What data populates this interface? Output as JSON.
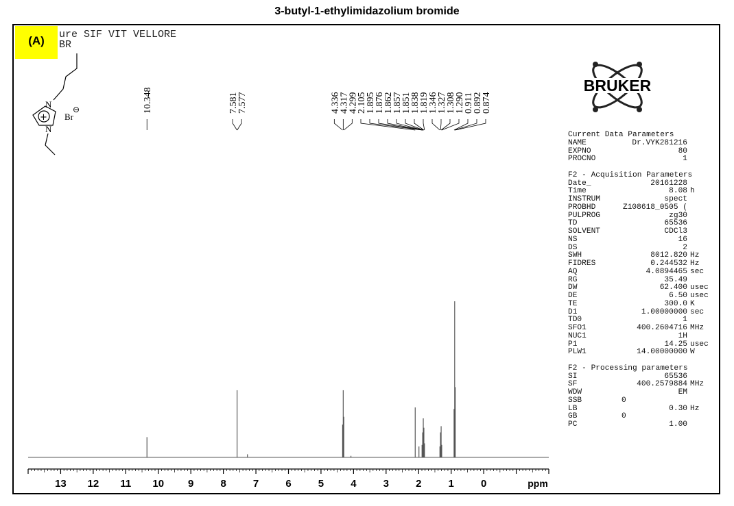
{
  "title": "3-butyl-1-ethylimidazolium bromide",
  "panel_label": "(A)",
  "header_lines": [
    "ure SIF VIT VELLORE",
    "BR"
  ],
  "structure": {
    "n1": "N",
    "n2": "N",
    "plus": "⊕",
    "anion": "Br",
    "anion_charge": "⊖"
  },
  "logo_text": "BRUKER",
  "params": {
    "current_title": "Current Data Parameters",
    "current": [
      {
        "k": "NAME",
        "v": "Dr.VYK281216",
        "u": ""
      },
      {
        "k": "EXPNO",
        "v": "80",
        "u": ""
      },
      {
        "k": "PROCNO",
        "v": "1",
        "u": ""
      }
    ],
    "acq_title": "F2 - Acquisition Parameters",
    "acq": [
      {
        "k": "Date_",
        "v": "20161228",
        "u": ""
      },
      {
        "k": "Time",
        "v": "8.08",
        "u": "h"
      },
      {
        "k": "INSTRUM",
        "v": "spect",
        "u": ""
      },
      {
        "k": "PROBHD",
        "v": "Z108618_0505 (",
        "u": ""
      },
      {
        "k": "PULPROG",
        "v": "zg30",
        "u": ""
      },
      {
        "k": "TD",
        "v": "65536",
        "u": ""
      },
      {
        "k": "SOLVENT",
        "v": "CDCl3",
        "u": ""
      },
      {
        "k": "NS",
        "v": "16",
        "u": ""
      },
      {
        "k": "DS",
        "v": "2",
        "u": ""
      },
      {
        "k": "SWH",
        "v": "8012.820",
        "u": "Hz"
      },
      {
        "k": "FIDRES",
        "v": "0.244532",
        "u": "Hz"
      },
      {
        "k": "AQ",
        "v": "4.0894465",
        "u": "sec"
      },
      {
        "k": "RG",
        "v": "35.49",
        "u": ""
      },
      {
        "k": "DW",
        "v": "62.400",
        "u": "usec"
      },
      {
        "k": "DE",
        "v": "6.50",
        "u": "usec"
      },
      {
        "k": "TE",
        "v": "300.0",
        "u": "K"
      },
      {
        "k": "D1",
        "v": "1.00000000",
        "u": "sec"
      },
      {
        "k": "TD0",
        "v": "1",
        "u": ""
      },
      {
        "k": "SFO1",
        "v": "400.2604716",
        "u": "MHz"
      },
      {
        "k": "NUC1",
        "v": "1H",
        "u": ""
      },
      {
        "k": "P1",
        "v": "14.25",
        "u": "usec"
      },
      {
        "k": "PLW1",
        "v": "14.00000000",
        "u": "W"
      }
    ],
    "proc_title": "F2 - Processing parameters",
    "proc": [
      {
        "k": "SI",
        "v": "65536",
        "u": ""
      },
      {
        "k": "SF",
        "v": "400.2579884",
        "u": "MHz"
      },
      {
        "k": "WDW",
        "v": "EM",
        "u": ""
      },
      {
        "k": "SSB",
        "v": "0",
        "u": "",
        "left": true
      },
      {
        "k": "LB",
        "v": "0.30",
        "u": "Hz"
      },
      {
        "k": "GB",
        "v": "0",
        "u": "",
        "left": true
      },
      {
        "k": "PC",
        "v": "1.00",
        "u": ""
      }
    ]
  },
  "chart_data": {
    "type": "line",
    "title": "3-butyl-1-ethylimidazolium bromide",
    "xlabel": "ppm",
    "xlim": [
      14.0,
      -2.0
    ],
    "x_reversed": true,
    "xticks": [
      13,
      12,
      11,
      10,
      9,
      8,
      7,
      6,
      5,
      4,
      3,
      2,
      1,
      0
    ],
    "peak_labels": [
      "10.348",
      "7.581",
      "7.577",
      "4.336",
      "4.317",
      "4.299",
      "2.105",
      "1.895",
      "1.876",
      "1.862",
      "1.857",
      "1.851",
      "1.838",
      "1.819",
      "1.346",
      "1.327",
      "1.308",
      "1.290",
      "0.911",
      "0.892",
      "0.874"
    ],
    "peaks": [
      {
        "ppm": 10.348,
        "h": 0.13
      },
      {
        "ppm": 7.579,
        "h": 0.43
      },
      {
        "ppm": 7.26,
        "h": 0.02
      },
      {
        "ppm": 4.336,
        "h": 0.21
      },
      {
        "ppm": 4.317,
        "h": 0.43
      },
      {
        "ppm": 4.299,
        "h": 0.26
      },
      {
        "ppm": 4.08,
        "h": 0.01
      },
      {
        "ppm": 2.105,
        "h": 0.32
      },
      {
        "ppm": 1.99,
        "h": 0.07
      },
      {
        "ppm": 1.895,
        "h": 0.08
      },
      {
        "ppm": 1.876,
        "h": 0.16
      },
      {
        "ppm": 1.857,
        "h": 0.25
      },
      {
        "ppm": 1.838,
        "h": 0.19
      },
      {
        "ppm": 1.819,
        "h": 0.09
      },
      {
        "ppm": 1.346,
        "h": 0.07
      },
      {
        "ppm": 1.327,
        "h": 0.16
      },
      {
        "ppm": 1.308,
        "h": 0.2
      },
      {
        "ppm": 1.29,
        "h": 0.08
      },
      {
        "ppm": 0.911,
        "h": 0.31
      },
      {
        "ppm": 0.892,
        "h": 1.0
      },
      {
        "ppm": 0.874,
        "h": 0.45
      }
    ],
    "colors": {
      "trace": "#555555",
      "axis": "#000000"
    }
  }
}
